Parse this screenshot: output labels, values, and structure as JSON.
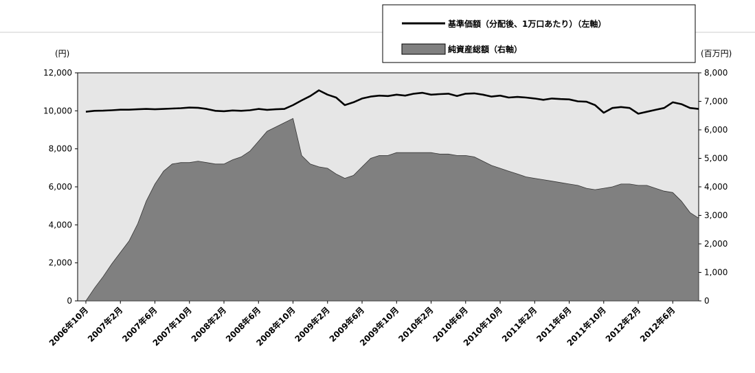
{
  "chart_data": {
    "type": "area+line",
    "left_axis_unit": "(円)",
    "right_axis_unit": "(百万円)",
    "left_ylim": [
      0,
      12000
    ],
    "left_ticks": [
      0,
      2000,
      4000,
      6000,
      8000,
      10000,
      12000
    ],
    "left_tick_labels": [
      "0",
      "2,000",
      "4,000",
      "6,000",
      "8,000",
      "10,000",
      "12,000"
    ],
    "right_ylim": [
      0,
      8000
    ],
    "right_ticks": [
      0,
      1000,
      2000,
      3000,
      4000,
      5000,
      6000,
      7000,
      8000
    ],
    "right_tick_labels": [
      "0",
      "1,000",
      "2,000",
      "3,000",
      "4,000",
      "5,000",
      "6,000",
      "7,000",
      "8,000"
    ],
    "x_tick_labels": [
      "2006年10月",
      "2007年2月",
      "2007年6月",
      "2007年10月",
      "2008年2月",
      "2008年6月",
      "2008年10月",
      "2009年2月",
      "2009年6月",
      "2009年10月",
      "2010年2月",
      "2010年6月",
      "2010年10月",
      "2011年2月",
      "2011年6月",
      "2011年10月",
      "2012年2月",
      "2012年6月"
    ],
    "months": [
      "2006-10",
      "2006-11",
      "2006-12",
      "2007-01",
      "2007-02",
      "2007-03",
      "2007-04",
      "2007-05",
      "2007-06",
      "2007-07",
      "2007-08",
      "2007-09",
      "2007-10",
      "2007-11",
      "2007-12",
      "2008-01",
      "2008-02",
      "2008-03",
      "2008-04",
      "2008-05",
      "2008-06",
      "2008-07",
      "2008-08",
      "2008-09",
      "2008-10",
      "2008-11",
      "2008-12",
      "2009-01",
      "2009-02",
      "2009-03",
      "2009-04",
      "2009-05",
      "2009-06",
      "2009-07",
      "2009-08",
      "2009-09",
      "2009-10",
      "2009-11",
      "2009-12",
      "2010-01",
      "2010-02",
      "2010-03",
      "2010-04",
      "2010-05",
      "2010-06",
      "2010-07",
      "2010-08",
      "2010-09",
      "2010-10",
      "2010-11",
      "2010-12",
      "2011-01",
      "2011-02",
      "2011-03",
      "2011-04",
      "2011-05",
      "2011-06",
      "2011-07",
      "2011-08",
      "2011-09",
      "2011-10",
      "2011-11",
      "2011-12",
      "2012-01",
      "2012-02",
      "2012-03",
      "2012-04",
      "2012-05",
      "2012-06",
      "2012-07",
      "2012-08",
      "2012-09"
    ],
    "series": [
      {
        "name": "基準価額（分配後、1万口あたり）（左軸）",
        "axis": "left",
        "kind": "line",
        "color": "#000000",
        "values": [
          9950,
          10000,
          10010,
          10030,
          10060,
          10060,
          10080,
          10100,
          10080,
          10100,
          10120,
          10140,
          10170,
          10160,
          10100,
          10000,
          9980,
          10020,
          10000,
          10030,
          10100,
          10050,
          10080,
          10100,
          10300,
          10550,
          10780,
          11080,
          10850,
          10700,
          10300,
          10450,
          10650,
          10750,
          10800,
          10780,
          10850,
          10800,
          10900,
          10950,
          10850,
          10880,
          10900,
          10780,
          10900,
          10920,
          10850,
          10750,
          10800,
          10700,
          10730,
          10700,
          10650,
          10580,
          10650,
          10620,
          10600,
          10500,
          10480,
          10300,
          9900,
          10150,
          10200,
          10150,
          9850,
          9950,
          10050,
          10150,
          10450,
          10350,
          10150,
          10100
        ]
      },
      {
        "name": "純資産総額（右軸）",
        "axis": "right",
        "kind": "area",
        "color": "#808080",
        "values": [
          0,
          450,
          850,
          1300,
          1700,
          2100,
          2700,
          3500,
          4100,
          4550,
          4800,
          4850,
          4850,
          4900,
          4850,
          4800,
          4800,
          4950,
          5050,
          5250,
          5600,
          5950,
          6100,
          6250,
          6400,
          5100,
          4800,
          4700,
          4650,
          4450,
          4300,
          4400,
          4700,
          5000,
          5100,
          5100,
          5200,
          5200,
          5200,
          5200,
          5200,
          5150,
          5150,
          5100,
          5100,
          5050,
          4900,
          4750,
          4650,
          4550,
          4450,
          4350,
          4300,
          4250,
          4200,
          4150,
          4100,
          4050,
          3950,
          3900,
          3950,
          4000,
          4100,
          4100,
          4050,
          4050,
          3950,
          3850,
          3800,
          3500,
          3100,
          2900
        ]
      }
    ],
    "legend_position": "top-right",
    "legend": [
      "基準価額（分配後、1万口あたり）（左軸）",
      "純資産総額（右軸）"
    ]
  }
}
